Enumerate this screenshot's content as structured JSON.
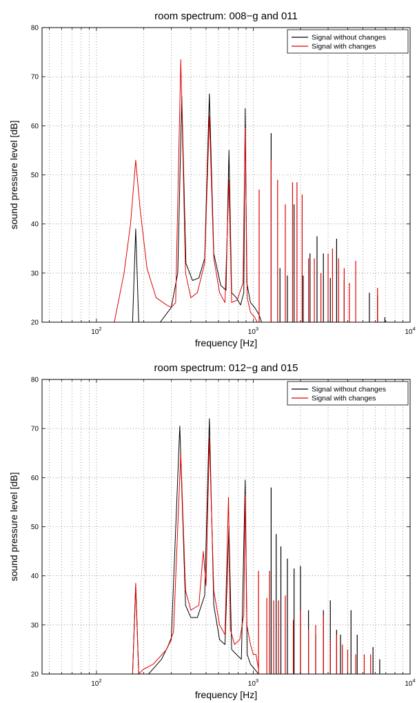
{
  "chart_data": [
    {
      "type": "line",
      "title": "room spectrum: 008−g and 011",
      "xlabel": "frequency [Hz]",
      "ylabel": "sound pressure level [dB]",
      "xscale": "log",
      "xlim": [
        45,
        10000
      ],
      "ylim": [
        20,
        80
      ],
      "yticks": [
        20,
        30,
        40,
        50,
        60,
        70,
        80
      ],
      "xticks": [
        {
          "value": 100,
          "base": "10",
          "exp": "2"
        },
        {
          "value": 1000,
          "base": "10",
          "exp": "3"
        },
        {
          "value": 10000,
          "base": "10",
          "exp": "4"
        }
      ],
      "grid": true,
      "legend_position": "top-right",
      "series": [
        {
          "name": "Signal without changes",
          "color": "#000000",
          "baseline": [
            [
              170,
              20
            ],
            [
              178,
              39
            ],
            [
              186,
              20
            ]
          ],
          "smooth": [
            [
              255,
              20
            ],
            [
              300,
              23
            ],
            [
              330,
              30
            ],
            [
              350,
              66
            ],
            [
              372,
              32
            ],
            [
              410,
              28.5
            ],
            [
              450,
              29
            ],
            [
              490,
              33
            ],
            [
              525,
              66.5
            ],
            [
              560,
              34
            ],
            [
              620,
              27.5
            ],
            [
              670,
              26.5
            ],
            [
              700,
              55
            ],
            [
              728,
              26
            ],
            [
              780,
              25
            ],
            [
              830,
              23.5
            ],
            [
              870,
              26
            ],
            [
              888,
              63.5
            ],
            [
              910,
              28
            ],
            [
              960,
              24
            ],
            [
              1020,
              23
            ],
            [
              1090,
              21.5
            ],
            [
              1130,
              20
            ]
          ],
          "spikes": [
            [
              1300,
              58.5
            ],
            [
              1480,
              31
            ],
            [
              1650,
              29.5
            ],
            [
              1820,
              44
            ],
            [
              2080,
              29.5
            ],
            [
              2300,
              34
            ],
            [
              2550,
              37.5
            ],
            [
              2800,
              34
            ],
            [
              3100,
              29
            ],
            [
              3400,
              37
            ],
            [
              3800,
              28.5
            ],
            [
              5500,
              26
            ],
            [
              6200,
              25.5
            ],
            [
              6900,
              21
            ]
          ]
        },
        {
          "name": "Signal with changes",
          "color": "#e00000",
          "baseline": [],
          "smooth": [
            [
              130,
              20
            ],
            [
              150,
              30
            ],
            [
              165,
              40
            ],
            [
              178,
              53
            ],
            [
              190,
              43
            ],
            [
              210,
              31
            ],
            [
              240,
              25
            ],
            [
              280,
              23.5
            ],
            [
              300,
              23
            ],
            [
              320,
              24
            ],
            [
              345,
              73.5
            ],
            [
              370,
              30
            ],
            [
              400,
              25
            ],
            [
              440,
              26
            ],
            [
              490,
              32
            ],
            [
              525,
              62
            ],
            [
              560,
              33
            ],
            [
              610,
              26
            ],
            [
              660,
              24
            ],
            [
              700,
              49
            ],
            [
              728,
              24
            ],
            [
              790,
              24.5
            ],
            [
              860,
              28
            ],
            [
              888,
              59.5
            ],
            [
              915,
              25
            ],
            [
              960,
              22
            ],
            [
              1020,
              21
            ],
            [
              1060,
              20
            ]
          ],
          "spikes": [
            [
              1090,
              47
            ],
            [
              1300,
              53
            ],
            [
              1430,
              49
            ],
            [
              1600,
              44
            ],
            [
              1780,
              48.5
            ],
            [
              1900,
              48.5
            ],
            [
              2050,
              46
            ],
            [
              2250,
              33
            ],
            [
              2450,
              33
            ],
            [
              2700,
              30
            ],
            [
              3000,
              34
            ],
            [
              3200,
              35
            ],
            [
              3500,
              33
            ],
            [
              3800,
              31
            ],
            [
              4100,
              28
            ],
            [
              4500,
              32.5
            ],
            [
              6200,
              27
            ]
          ]
        }
      ]
    },
    {
      "type": "line",
      "title": "room spectrum: 012−g and 015",
      "xlabel": "frequency [Hz]",
      "ylabel": "sound pressure level [dB]",
      "xscale": "log",
      "xlim": [
        45,
        10000
      ],
      "ylim": [
        20,
        80
      ],
      "yticks": [
        20,
        30,
        40,
        50,
        60,
        70,
        80
      ],
      "xticks": [
        {
          "value": 100,
          "base": "10",
          "exp": "2"
        },
        {
          "value": 1000,
          "base": "10",
          "exp": "3"
        },
        {
          "value": 10000,
          "base": "10",
          "exp": "4"
        }
      ],
      "grid": true,
      "legend_position": "top-right",
      "series": [
        {
          "name": "Signal without changes",
          "color": "#000000",
          "baseline": [],
          "smooth": [
            [
              170,
              20
            ],
            [
              178,
              38
            ],
            [
              186,
              20
            ],
            [
              215,
              20
            ],
            [
              260,
              23
            ],
            [
              300,
              27
            ],
            [
              340,
              70.5
            ],
            [
              370,
              34
            ],
            [
              400,
              31.5
            ],
            [
              440,
              31.5
            ],
            [
              490,
              36
            ],
            [
              525,
              72
            ],
            [
              560,
              34
            ],
            [
              610,
              27
            ],
            [
              660,
              26
            ],
            [
              700,
              50
            ],
            [
              728,
              25
            ],
            [
              780,
              24
            ],
            [
              840,
              23
            ],
            [
              888,
              59.5
            ],
            [
              915,
              24
            ],
            [
              960,
              22
            ],
            [
              1020,
              21
            ],
            [
              1080,
              20
            ]
          ],
          "spikes": [
            [
              1300,
              58
            ],
            [
              1400,
              48.5
            ],
            [
              1500,
              46
            ],
            [
              1650,
              43.5
            ],
            [
              1820,
              41.5
            ],
            [
              2000,
              42
            ],
            [
              2250,
              33
            ],
            [
              2500,
              28
            ],
            [
              2800,
              33
            ],
            [
              3100,
              35
            ],
            [
              3400,
              29
            ],
            [
              3600,
              28
            ],
            [
              4200,
              33
            ],
            [
              4600,
              28
            ],
            [
              5800,
              25.5
            ],
            [
              6400,
              23
            ]
          ]
        },
        {
          "name": "Signal with changes",
          "color": "#e00000",
          "baseline": [],
          "smooth": [
            [
              170,
              20
            ],
            [
              178,
              38.5
            ],
            [
              186,
              20
            ],
            [
              200,
              21
            ],
            [
              230,
              22
            ],
            [
              280,
              25
            ],
            [
              310,
              28.5
            ],
            [
              345,
              65
            ],
            [
              370,
              37
            ],
            [
              400,
              33
            ],
            [
              450,
              34
            ],
            [
              480,
              45
            ],
            [
              500,
              38
            ],
            [
              525,
              68
            ],
            [
              560,
              37
            ],
            [
              610,
              30
            ],
            [
              660,
              28
            ],
            [
              695,
              56
            ],
            [
              715,
              29
            ],
            [
              760,
              26
            ],
            [
              820,
              27
            ],
            [
              870,
              32
            ],
            [
              888,
              56.5
            ],
            [
              910,
              30
            ],
            [
              960,
              26
            ],
            [
              1000,
              24
            ],
            [
              1040,
              24
            ],
            [
              1080,
              21
            ]
          ],
          "spikes": [
            [
              1080,
              41
            ],
            [
              1220,
              35.5
            ],
            [
              1270,
              41
            ],
            [
              1350,
              35
            ],
            [
              1450,
              35
            ],
            [
              1600,
              36
            ],
            [
              1800,
              31
            ],
            [
              2000,
              33
            ],
            [
              2250,
              29
            ],
            [
              2500,
              30
            ],
            [
              2800,
              32
            ],
            [
              3100,
              27
            ],
            [
              3400,
              28
            ],
            [
              3700,
              26
            ],
            [
              4000,
              25
            ],
            [
              4500,
              24
            ],
            [
              5100,
              24
            ],
            [
              5600,
              24
            ]
          ]
        }
      ]
    }
  ]
}
